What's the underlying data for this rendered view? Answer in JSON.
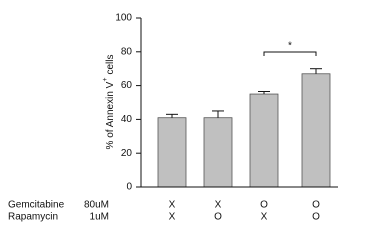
{
  "chart_data": {
    "type": "bar",
    "y_label": [
      "% of Annexin V",
      "+",
      "cells"
    ],
    "values": [
      41,
      41,
      55,
      67
    ],
    "errors": [
      2,
      4,
      1.5,
      3
    ],
    "color": "#c0c0c0",
    "ylim": [
      0,
      100
    ],
    "yticks": [
      0,
      20,
      40,
      60,
      80,
      100
    ],
    "grid": false,
    "annotation": "*",
    "treatments": [
      {
        "name": "Gemcitabine",
        "dose": "80uM",
        "marks": [
          "X",
          "X",
          "O",
          "O"
        ]
      },
      {
        "name": "Rapamycin",
        "dose": "1uM",
        "marks": [
          "X",
          "O",
          "X",
          "O"
        ]
      }
    ]
  }
}
